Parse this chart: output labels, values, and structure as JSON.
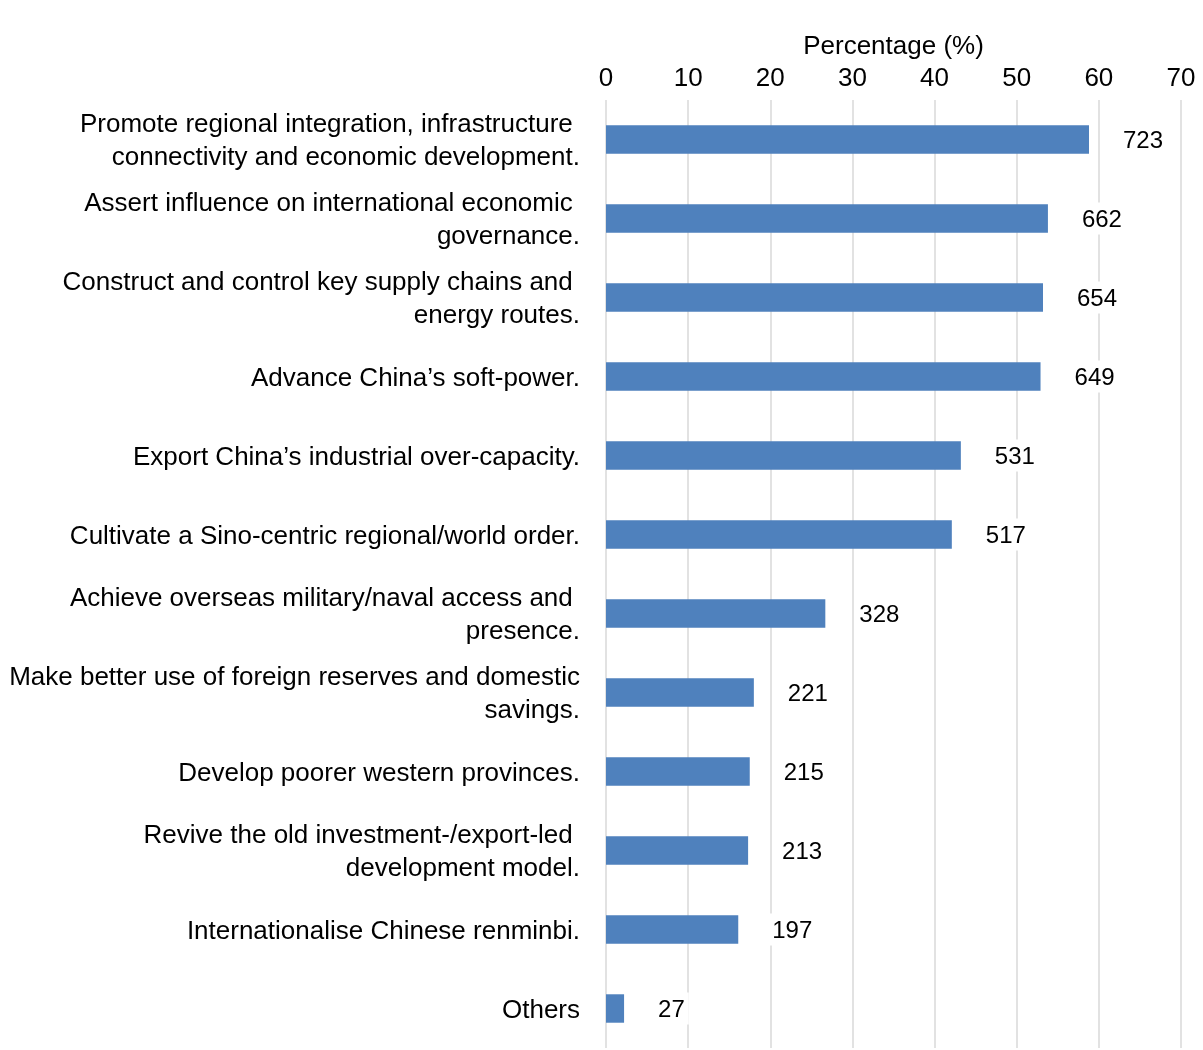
{
  "chart_data": {
    "type": "bar",
    "orientation": "horizontal",
    "xlabel": "Percentage (%)",
    "categories": [
      "Promote regional integration, infrastructure connectivity and economic development.",
      "Assert influence on international economic governance.",
      "Construct and control key supply chains and energy routes.",
      "Advance China’s soft-power.",
      "Export China’s industrial over-capacity.",
      "Cultivate a Sino-centric regional/world order.",
      "Achieve overseas military/naval access and presence.",
      "Make better use of foreign reserves and domestic savings.",
      "Develop poorer western provinces.",
      "Revive the old investment-/export-led development model.",
      "Internationalise Chinese renminbi.",
      "Others"
    ],
    "values": [
      58.8,
      53.8,
      53.2,
      52.9,
      43.2,
      42.1,
      26.7,
      18.0,
      17.5,
      17.3,
      16.1,
      2.2
    ],
    "annotations": [
      {
        "text": "723",
        "x": 58.8,
        "y": "Promote regional integration, infrastructure connectivity and economic development."
      },
      {
        "text": "662",
        "x": 53.8,
        "y": "Assert influence on international economic governance."
      },
      {
        "text": "654",
        "x": 53.2,
        "y": "Construct and control key supply chains and energy routes."
      },
      {
        "text": "649",
        "x": 52.9,
        "y": "Advance China’s soft-power."
      },
      {
        "text": "531",
        "x": 43.2,
        "y": "Export China’s industrial over-capacity."
      },
      {
        "text": "517",
        "x": 42.1,
        "y": "Cultivate a Sino-centric regional/world order."
      },
      {
        "text": "328",
        "x": 26.7,
        "y": "Achieve overseas military/naval access and presence."
      },
      {
        "text": "221",
        "x": 18.0,
        "y": "Make better use of foreign reserves and domestic savings."
      },
      {
        "text": "215",
        "x": 17.5,
        "y": "Develop poorer western provinces."
      },
      {
        "text": "213",
        "x": 17.3,
        "y": "Revive the old investment-/export-led development model."
      },
      {
        "text": "197",
        "x": 16.1,
        "y": "Internationalise Chinese renminbi."
      },
      {
        "text": "27",
        "x": 2.2,
        "y": "Others"
      }
    ],
    "color": "#4f81bd",
    "xlim": [
      0,
      70
    ],
    "xticks": [
      0,
      10,
      20,
      30,
      40,
      50,
      60,
      70
    ],
    "grid": "x"
  }
}
